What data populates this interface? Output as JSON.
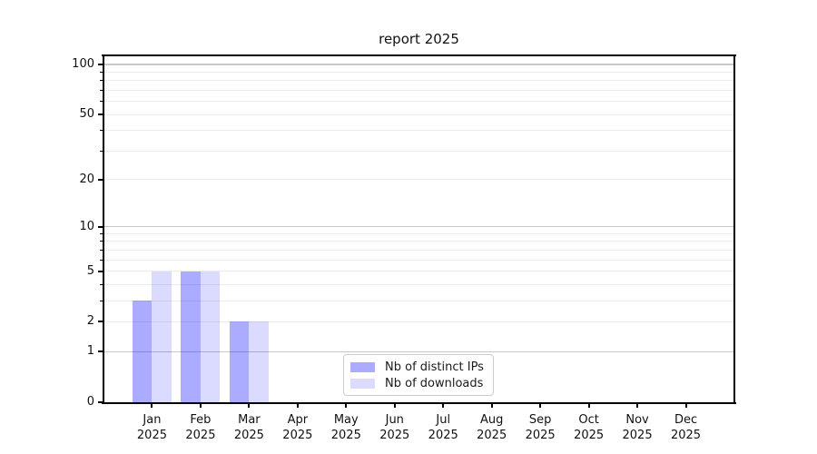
{
  "chart_data": {
    "type": "bar",
    "title": "report 2025",
    "categories": [
      "Jan 2025",
      "Feb 2025",
      "Mar 2025",
      "Apr 2025",
      "May 2025",
      "Jun 2025",
      "Jul 2025",
      "Aug 2025",
      "Sep 2025",
      "Oct 2025",
      "Nov 2025",
      "Dec 2025"
    ],
    "series": [
      {
        "name": "Nb of distinct IPs",
        "values": [
          3,
          5,
          2,
          0,
          0,
          0,
          0,
          0,
          0,
          0,
          0,
          0
        ],
        "color": "rgba(0,0,255,0.33)",
        "color_hex": "#aaaaf8"
      },
      {
        "name": "Nb of downloads",
        "values": [
          5,
          5,
          2,
          0,
          0,
          0,
          0,
          0,
          0,
          0,
          0,
          0
        ],
        "color": "rgba(0,0,255,0.14)",
        "color_hex": "#dcdcf8"
      }
    ],
    "xlabel": "",
    "ylabel": "",
    "yscale": "log1p",
    "ylim": [
      0,
      112
    ],
    "ytick_values": [
      0,
      1,
      2,
      5,
      10,
      20,
      50,
      100
    ],
    "ytick_labels": [
      "0",
      "1",
      "2",
      "5",
      "10",
      "20",
      "50",
      "100"
    ],
    "grid": {
      "on": true,
      "major_values": [
        1,
        10,
        100
      ],
      "minor_values": [
        2,
        3,
        4,
        5,
        6,
        7,
        8,
        9,
        20,
        30,
        40,
        50,
        60,
        70,
        80,
        90
      ],
      "major_color": "#c8c8c8",
      "minor_color": "#ececec"
    },
    "legend": {
      "position": "lower center",
      "items": [
        "Nb of distinct IPs",
        "Nb of downloads"
      ]
    }
  }
}
